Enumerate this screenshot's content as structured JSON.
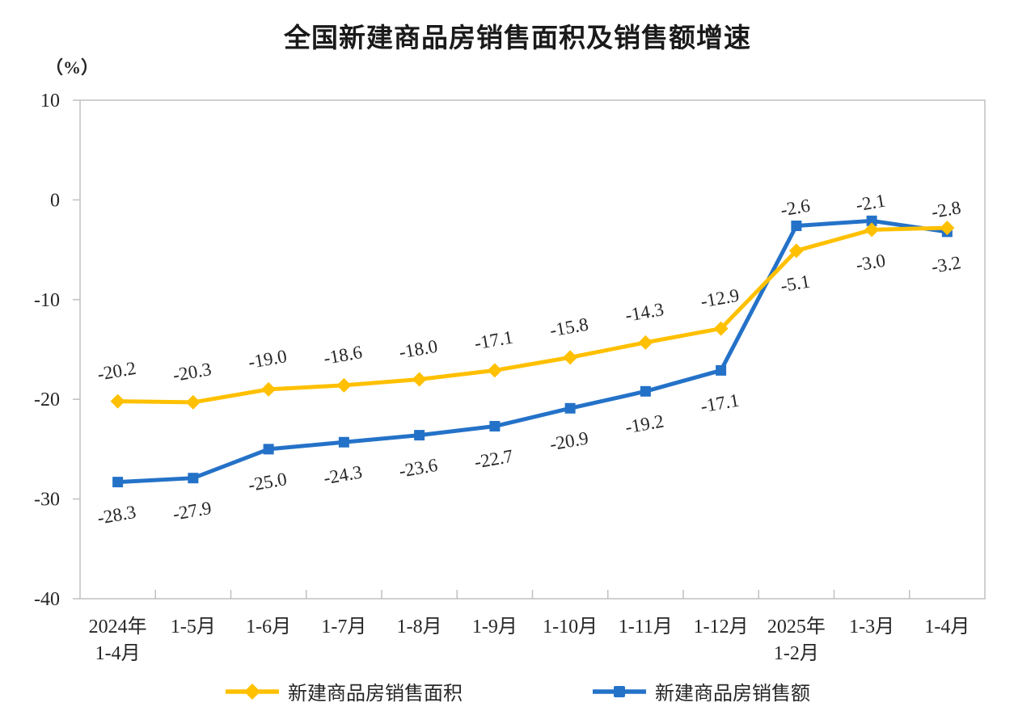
{
  "chart_data": {
    "type": "line",
    "title": "全国新建商品房销售面积及销售额增速",
    "xlabel": "",
    "ylabel": "（%）",
    "ylim": [
      -40,
      10
    ],
    "yticks": [
      10,
      0,
      -10,
      -20,
      -30,
      -40
    ],
    "grid": false,
    "legend_position": "bottom",
    "data_labels": "one-decimal, slightly rotated",
    "categories": [
      "2024年\n1-4月",
      "1-5月",
      "1-6月",
      "1-7月",
      "1-8月",
      "1-9月",
      "1-10月",
      "1-11月",
      "1-12月",
      "2025年\n1-2月",
      "1-3月",
      "1-4月"
    ],
    "series": [
      {
        "name": "新建商品房销售面积",
        "marker": "diamond",
        "color": "#FFC000",
        "values": [
          -20.2,
          -20.3,
          -19.0,
          -18.6,
          -18.0,
          -17.1,
          -15.8,
          -14.3,
          -12.9,
          -5.1,
          -3.0,
          -2.8
        ]
      },
      {
        "name": "新建商品房销售额",
        "marker": "square",
        "color": "#2472C8",
        "values": [
          -28.3,
          -27.9,
          -25.0,
          -24.3,
          -23.6,
          -22.7,
          -20.9,
          -19.2,
          -17.1,
          -2.6,
          -2.1,
          -3.2
        ]
      }
    ]
  },
  "colors": {
    "axis": "#C0C0C0",
    "text": "#262626",
    "title": "#1a1a1a",
    "background": "#ffffff"
  }
}
